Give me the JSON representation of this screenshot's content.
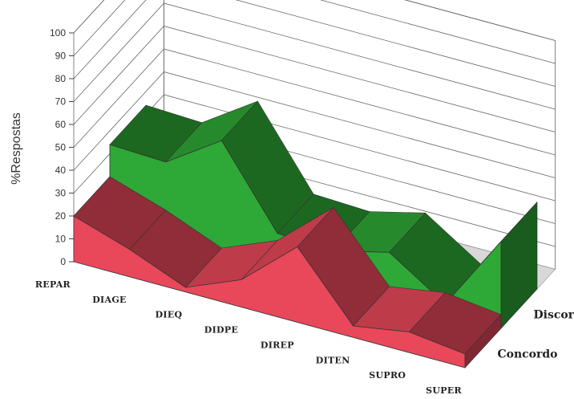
{
  "chart_data": {
    "type": "area",
    "view": "3d",
    "ylabel": "%Respostas",
    "ylim": [
      0,
      100
    ],
    "yticks": [
      0,
      10,
      20,
      30,
      40,
      50,
      60,
      70,
      80,
      90,
      100
    ],
    "categories": [
      "REPAR",
      "DIAGE",
      "DIEQ",
      "DIDPE",
      "DIREP",
      "DITEN",
      "SUPRO",
      "SUPER"
    ],
    "series": [
      {
        "name": "Concordo",
        "color": "#e8485a",
        "values": [
          20,
          12,
          2,
          12,
          33,
          5,
          9,
          6
        ]
      },
      {
        "name": "Discordo",
        "color": "#2ea836",
        "values": [
          34,
          33,
          49,
          15,
          14,
          20,
          4,
          38
        ]
      }
    ],
    "grid": true
  }
}
